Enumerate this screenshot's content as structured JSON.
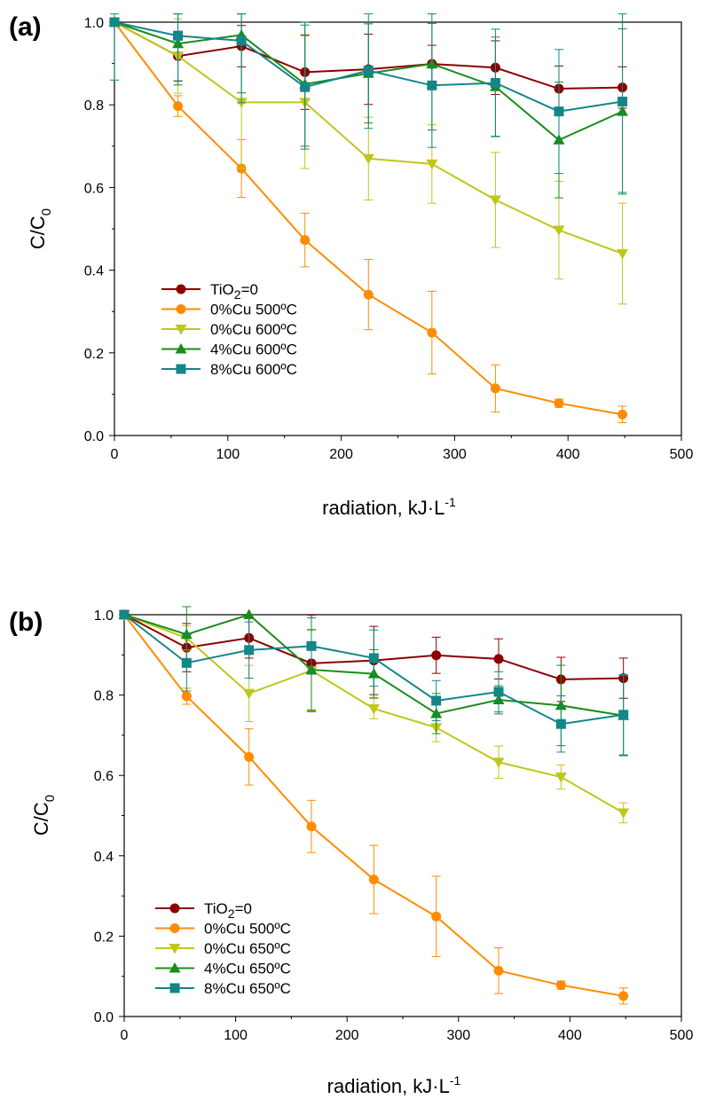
{
  "chart_data": [
    {
      "panel": "(a)",
      "type": "line",
      "xlabel": "radiation, kJ·L",
      "xlabel_sup": "-1",
      "ylabel": "C/C",
      "ylabel_sub": "0",
      "xlim": [
        0,
        500
      ],
      "ylim": [
        0.0,
        1.0
      ],
      "xticks": [
        "0",
        "100",
        "200",
        "300",
        "400",
        "500"
      ],
      "yticks": [
        "0.0",
        "0.2",
        "0.4",
        "0.6",
        "0.8",
        "1.0"
      ],
      "grid": false,
      "legend_position": "middle-left",
      "series": [
        {
          "name": "TiO2=0",
          "name_main": "TiO",
          "name_sub": "2",
          "name_rest": "=0",
          "color": "#8B0000",
          "marker": "circle",
          "x": [
            0,
            56,
            112,
            168,
            224,
            280,
            336,
            392,
            448
          ],
          "y": [
            1.0,
            0.918,
            0.942,
            0.879,
            0.886,
            0.899,
            0.89,
            0.839,
            0.842
          ],
          "err": [
            0,
            0.06,
            0.05,
            0.09,
            0.085,
            0.045,
            0.065,
            0.055,
            0.05
          ]
        },
        {
          "name": "0%Cu 500ºC",
          "color": "#FF8C00",
          "marker": "circle",
          "x": [
            0,
            56,
            112,
            168,
            224,
            280,
            336,
            392,
            448
          ],
          "y": [
            1.0,
            0.797,
            0.646,
            0.473,
            0.341,
            0.249,
            0.114,
            0.078,
            0.051
          ],
          "err": [
            0,
            0.025,
            0.07,
            0.065,
            0.085,
            0.1,
            0.057,
            0.01,
            0.02
          ]
        },
        {
          "name": "0%Cu 600ºC",
          "color": "#BFC61C",
          "marker": "triangle-down",
          "x": [
            0,
            56,
            112,
            168,
            224,
            280,
            336,
            392,
            448
          ],
          "y": [
            1.0,
            0.918,
            0.806,
            0.806,
            0.67,
            0.657,
            0.57,
            0.497,
            0.44
          ],
          "err": [
            0,
            0.09,
            0.16,
            0.16,
            0.1,
            0.095,
            0.115,
            0.118,
            0.122
          ]
        },
        {
          "name": "4%Cu 600ºC",
          "color": "#1A8C1A",
          "marker": "triangle-up",
          "x": [
            0,
            56,
            112,
            168,
            224,
            280,
            336,
            392,
            448
          ],
          "y": [
            1.0,
            0.948,
            0.969,
            0.85,
            0.876,
            0.899,
            0.844,
            0.715,
            0.784
          ],
          "err": [
            0,
            0.1,
            0.14,
            0.15,
            0.12,
            0.16,
            0.12,
            0.14,
            0.2
          ]
        },
        {
          "name": "8%Cu 600ºC",
          "color": "#138686",
          "marker": "square",
          "x": [
            0,
            56,
            112,
            168,
            224,
            280,
            336,
            392,
            448
          ],
          "y": [
            1.0,
            0.967,
            0.955,
            0.843,
            0.883,
            0.847,
            0.853,
            0.784,
            0.808
          ],
          "err": [
            0.14,
            0.11,
            0.15,
            0.15,
            0.14,
            0.15,
            0.13,
            0.15,
            0.22
          ]
        }
      ]
    },
    {
      "panel": "(b)",
      "type": "line",
      "xlabel": "radiation, kJ·L",
      "xlabel_sup": "-1",
      "ylabel": "C/C",
      "ylabel_sub": "0",
      "xlim": [
        0,
        500
      ],
      "ylim": [
        0.0,
        1.0
      ],
      "xticks": [
        "0",
        "100",
        "200",
        "300",
        "400",
        "500"
      ],
      "yticks": [
        "0.0",
        "0.2",
        "0.4",
        "0.6",
        "0.8",
        "1.0"
      ],
      "grid": false,
      "legend_position": "bottom-left",
      "series": [
        {
          "name": "TiO2=0",
          "name_main": "TiO",
          "name_sub": "2",
          "name_rest": "=0",
          "color": "#8B0000",
          "marker": "circle",
          "x": [
            0,
            56,
            112,
            168,
            224,
            280,
            336,
            392,
            448
          ],
          "y": [
            1.0,
            0.918,
            0.942,
            0.879,
            0.886,
            0.899,
            0.89,
            0.839,
            0.842
          ],
          "err": [
            0,
            0.06,
            0.05,
            0.12,
            0.085,
            0.045,
            0.05,
            0.055,
            0.05
          ]
        },
        {
          "name": "0%Cu 500ºC",
          "color": "#FF8C00",
          "marker": "circle",
          "x": [
            0,
            56,
            112,
            168,
            224,
            280,
            336,
            392,
            448
          ],
          "y": [
            1.0,
            0.797,
            0.646,
            0.473,
            0.341,
            0.249,
            0.114,
            0.078,
            0.051
          ],
          "err": [
            0,
            0.02,
            0.07,
            0.065,
            0.085,
            0.1,
            0.057,
            0.01,
            0.02
          ]
        },
        {
          "name": "0%Cu 650ºC",
          "color": "#BFC61C",
          "marker": "triangle-down",
          "x": [
            0,
            56,
            112,
            168,
            224,
            280,
            336,
            392,
            448
          ],
          "y": [
            1.0,
            0.942,
            0.804,
            0.861,
            0.766,
            0.719,
            0.633,
            0.596,
            0.507
          ],
          "err": [
            0,
            0.03,
            0.07,
            0.1,
            0.025,
            0.035,
            0.04,
            0.03,
            0.025
          ]
        },
        {
          "name": "4%Cu 650ºC",
          "color": "#1A8C1A",
          "marker": "triangle-up",
          "x": [
            0,
            56,
            112,
            168,
            224,
            280,
            336,
            392,
            448
          ],
          "y": [
            1.0,
            0.951,
            1.0,
            0.863,
            0.853,
            0.754,
            0.788,
            0.774,
            0.749
          ],
          "err": [
            0,
            0.07,
            0.0,
            0.1,
            0.06,
            0.05,
            0.035,
            0.1,
            0.1
          ]
        },
        {
          "name": "8%Cu 650ºC",
          "color": "#138686",
          "marker": "square",
          "x": [
            0,
            56,
            112,
            168,
            224,
            280,
            336,
            392,
            448
          ],
          "y": [
            1.0,
            0.88,
            0.912,
            0.922,
            0.892,
            0.786,
            0.808,
            0.728,
            0.751
          ],
          "err": [
            0,
            0.07,
            0.07,
            0.07,
            0.07,
            0.05,
            0.05,
            0.07,
            0.1
          ]
        }
      ]
    }
  ]
}
